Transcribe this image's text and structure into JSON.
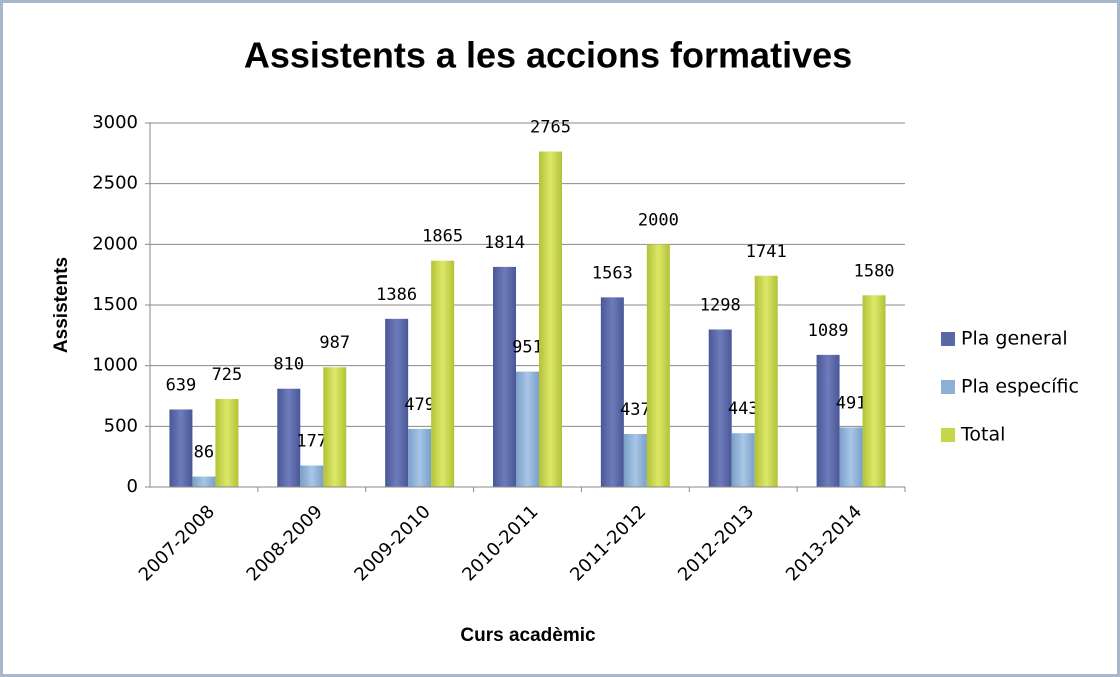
{
  "chart_data": {
    "type": "bar",
    "title": "Assistents a les accions formatives",
    "x_label": "Curs acadèmic",
    "y_label": "Assistents",
    "categories": [
      "2007-2008",
      "2008-2009",
      "2009-2010",
      "2010-2011",
      "2011-2012",
      "2012-2013",
      "2013-2014"
    ],
    "series": [
      {
        "name": "Pla general",
        "color": "#5a67a6",
        "values": [
          639,
          810,
          1386,
          1814,
          1563,
          1298,
          1089
        ]
      },
      {
        "name": "Pla específic",
        "color": "#8cb0d6",
        "values": [
          86,
          177,
          479,
          951,
          437,
          443,
          491
        ]
      },
      {
        "name": "Total",
        "color": "#c6d648",
        "values": [
          725,
          987,
          1865,
          2765,
          2000,
          1741,
          1580
        ]
      }
    ],
    "ylim": [
      0,
      3000
    ],
    "yticks": [
      0,
      500,
      1000,
      1500,
      2000,
      2500,
      3000
    ],
    "grid": true,
    "legend": "right"
  }
}
